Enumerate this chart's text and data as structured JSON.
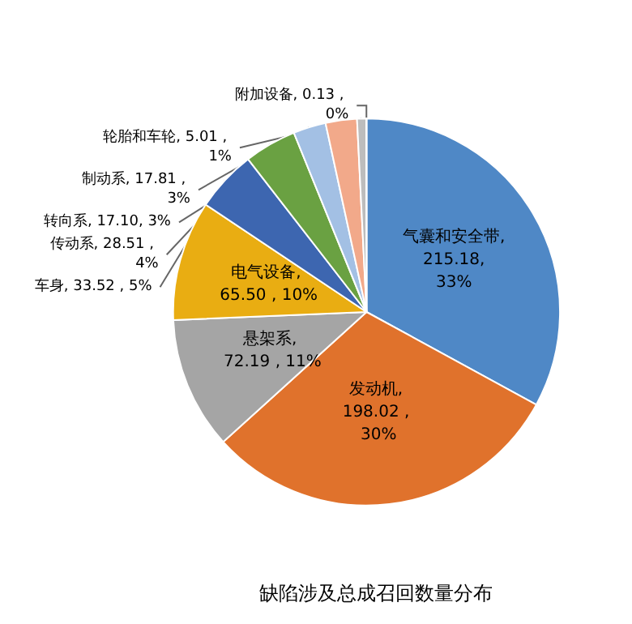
{
  "chart_data": {
    "type": "pie",
    "title": "缺陷涉及总成召回数量分布",
    "categories": [
      "气囊和安全带",
      "发动机",
      "悬架系",
      "电气设备",
      "车身",
      "传动系",
      "制动系",
      "转向系",
      "轮胎和车轮",
      "附加设备"
    ],
    "values": [
      215.18,
      198.02,
      72.19,
      65.5,
      33.52,
      28.51,
      17.81,
      17.1,
      5.01,
      0.13
    ],
    "value_labels": [
      ", 215.18, 33%",
      ", 198.02 , 30%",
      ", 72.19 , 11%",
      ", 65.50 , 10%",
      ", 33.52 , 5%",
      ", 28.51 , 4%",
      ", 17.81 , 3%",
      ", 17.10, 3%",
      ", 5.01 , 1%",
      ", 0.13 , 0%"
    ],
    "colors": [
      "#4f88c6",
      "#e0722c",
      "#a5a5a5",
      "#e9ad12",
      "#3d66b0",
      "#6aa142",
      "#a3c0e4",
      "#f2a98a",
      "#bdbdbd",
      "#7f7f7f"
    ],
    "legend": false
  }
}
